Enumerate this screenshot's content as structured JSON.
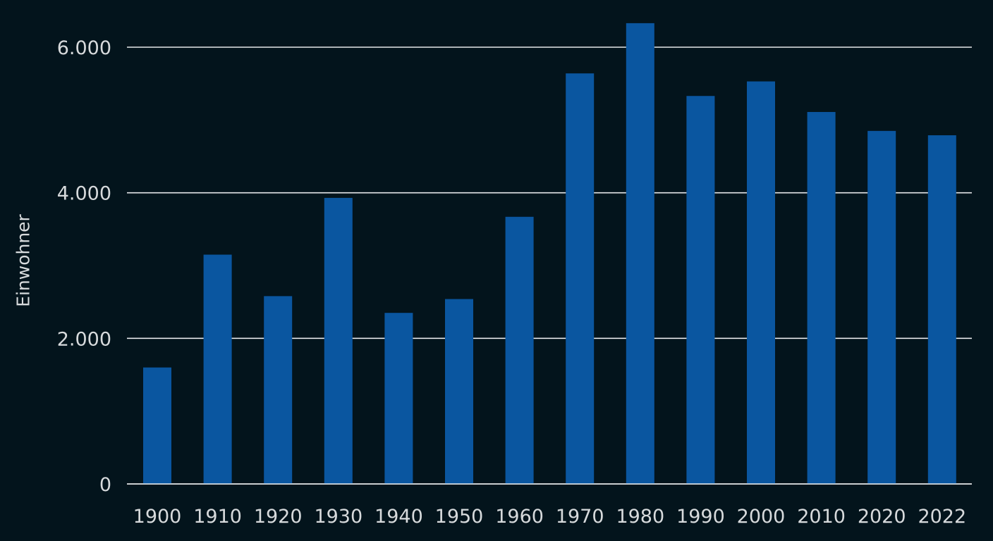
{
  "chart_data": {
    "type": "bar",
    "title": "",
    "xlabel": "",
    "ylabel": "Einwohner",
    "categories": [
      "1900",
      "1910",
      "1920",
      "1930",
      "1940",
      "1950",
      "1960",
      "1970",
      "1980",
      "1990",
      "2000",
      "2010",
      "2020",
      "2022"
    ],
    "values": [
      1600,
      3150,
      2580,
      3930,
      2350,
      2540,
      3670,
      5640,
      6330,
      5330,
      5530,
      5110,
      4850,
      4790
    ],
    "ylim": [
      0,
      6500
    ],
    "yticks": [
      0,
      2000,
      4000,
      6000
    ],
    "ytick_labels": [
      "0",
      "2.000",
      "4.000",
      "6.000"
    ],
    "grid": true,
    "legend": null,
    "colors": {
      "bar": "#0a56a0",
      "background": "#03141c",
      "grid": "#e6e8ea",
      "text": "#d7dadc"
    }
  }
}
